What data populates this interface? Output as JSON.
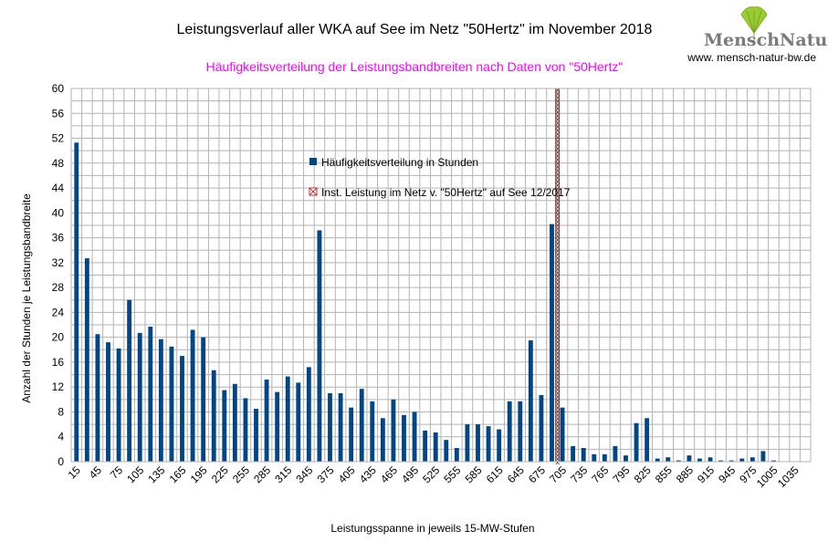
{
  "chart_data": {
    "type": "bar",
    "title": "Leistungsverlauf aller WKA auf See im Netz \"50Hertz\" im November 2018",
    "subtitle": "Häufigkeitsverteilung der Leistungsbandbreiten nach Daten von \"50Hertz\"",
    "xlabel": "Leistungsspanne in jeweils 15-MW-Stufen",
    "ylabel": "Anzahl der Stunden je Leistungsbandbreite",
    "ylim": [
      0,
      60
    ],
    "y_ticks": [
      0,
      4,
      8,
      12,
      16,
      20,
      24,
      28,
      32,
      36,
      40,
      44,
      48,
      52,
      56,
      60
    ],
    "x_tick_labels": [
      "15",
      "45",
      "75",
      "105",
      "135",
      "165",
      "195",
      "225",
      "255",
      "285",
      "315",
      "345",
      "375",
      "405",
      "435",
      "465",
      "495",
      "525",
      "555",
      "585",
      "615",
      "645",
      "675",
      "705",
      "735",
      "765",
      "795",
      "825",
      "855",
      "885",
      "915",
      "945",
      "975",
      "1005",
      "1035"
    ],
    "grid": true,
    "series": [
      {
        "name": "Häufigkeitsverteilung in Stunden",
        "color": "#004586",
        "values": [
          51.3,
          32.7,
          20.5,
          19.2,
          18.2,
          26.0,
          20.7,
          21.7,
          19.7,
          18.5,
          17.0,
          21.2,
          20.0,
          14.7,
          11.5,
          12.5,
          10.2,
          8.5,
          13.2,
          11.2,
          13.7,
          12.7,
          15.2,
          37.2,
          11.0,
          11.0,
          8.7,
          11.7,
          9.7,
          7.0,
          10.0,
          7.5,
          8.0,
          5.0,
          4.7,
          3.5,
          2.2,
          6.0,
          6.0,
          5.7,
          5.2,
          9.7,
          9.7,
          19.5,
          10.7,
          38.2,
          8.7,
          2.5,
          2.2,
          1.2,
          1.2,
          2.5,
          1.0,
          6.2,
          7.0,
          0.5,
          0.7,
          0.2,
          1.0,
          0.5,
          0.7,
          0.2,
          0.2,
          0.5,
          0.7,
          1.7,
          0.2,
          0,
          0,
          0
        ]
      },
      {
        "name": "Inst. Leistung im Netz v. \"50Hertz\" auf See 12/2017",
        "type": "vertical-line",
        "x_value": 698,
        "color": "#c00000"
      }
    ],
    "legend_position": "top-center"
  },
  "logo": {
    "name": "MenschNatur",
    "name_part1": "Mensch",
    "name_part2": "Natur",
    "url": "www. mensch-natur-bw.de",
    "leaf_color": "#9acd32"
  },
  "colors": {
    "subtitle": "#ff00ff",
    "grid": "#b3b3b3",
    "bar": "#004586"
  }
}
